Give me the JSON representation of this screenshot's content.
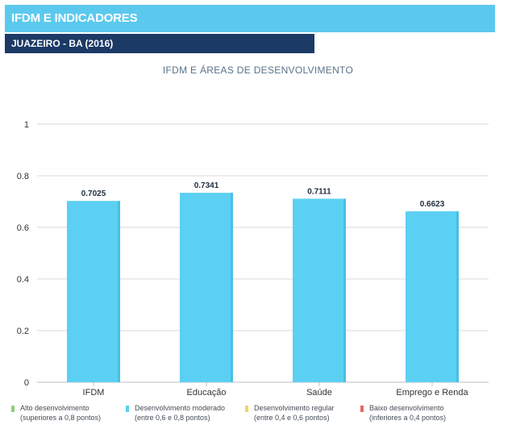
{
  "header": {
    "title": "IFDM E INDICADORES",
    "subtitle": "JUAZEIRO - BA (2016)"
  },
  "chart_data": {
    "type": "bar",
    "title": "IFDM E ÁREAS DE DESENVOLVIMENTO",
    "categories": [
      "IFDM",
      "Educação",
      "Saúde",
      "Emprego e Renda"
    ],
    "values": [
      0.7025,
      0.7341,
      0.7111,
      0.6623
    ],
    "value_labels": [
      "0.7025",
      "0.7341",
      "0.7111",
      "0.6623"
    ],
    "yticks": [
      "0",
      "0.2",
      "0.4",
      "0.6",
      "0.8",
      "1"
    ],
    "ylim": [
      0,
      1
    ],
    "xlabel": "",
    "ylabel": "",
    "grid": true,
    "bar_color": "#5bd0f3"
  },
  "legend": [
    {
      "label": "Alto desenvolvimento",
      "sub": "(superiores a 0,8 pontos)",
      "color": "#8fce7a"
    },
    {
      "label": "Desenvolvimento moderado",
      "sub": "(entre 0,6 e 0,8 pontos)",
      "color": "#5bd0f3"
    },
    {
      "label": "Desenvolvimento regular",
      "sub": "(entre 0,4 e 0,6 pontos)",
      "color": "#f2d660"
    },
    {
      "label": "Baixo desenvolvimento",
      "sub": "(inferiores a 0,4 pontos)",
      "color": "#e86868"
    }
  ]
}
